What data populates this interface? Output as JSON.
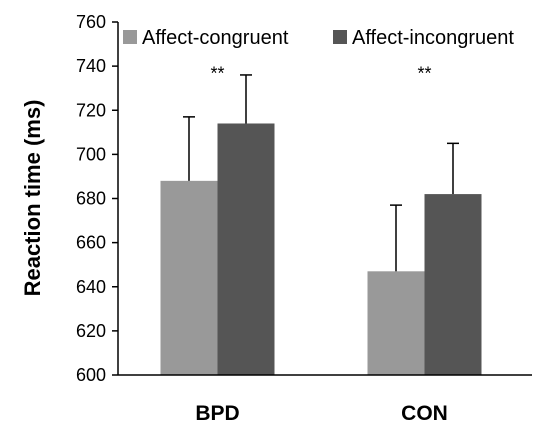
{
  "chart_data": {
    "type": "bar",
    "title": "",
    "xlabel": "",
    "ylabel": "Reaction time  (ms)",
    "categories": [
      "BPD",
      "CON"
    ],
    "series": [
      {
        "name": "Affect-congruent",
        "color": "#999999",
        "values": [
          688,
          647
        ],
        "error": [
          29,
          30
        ]
      },
      {
        "name": "Affect-incongruent",
        "color": "#555555",
        "values": [
          714,
          682
        ],
        "error": [
          22,
          23
        ]
      }
    ],
    "ylim": [
      600,
      760
    ],
    "yticks": [
      600,
      620,
      640,
      660,
      680,
      700,
      720,
      740,
      760
    ],
    "annotations": [
      "**",
      "**"
    ],
    "grid": false,
    "legend": "top"
  }
}
